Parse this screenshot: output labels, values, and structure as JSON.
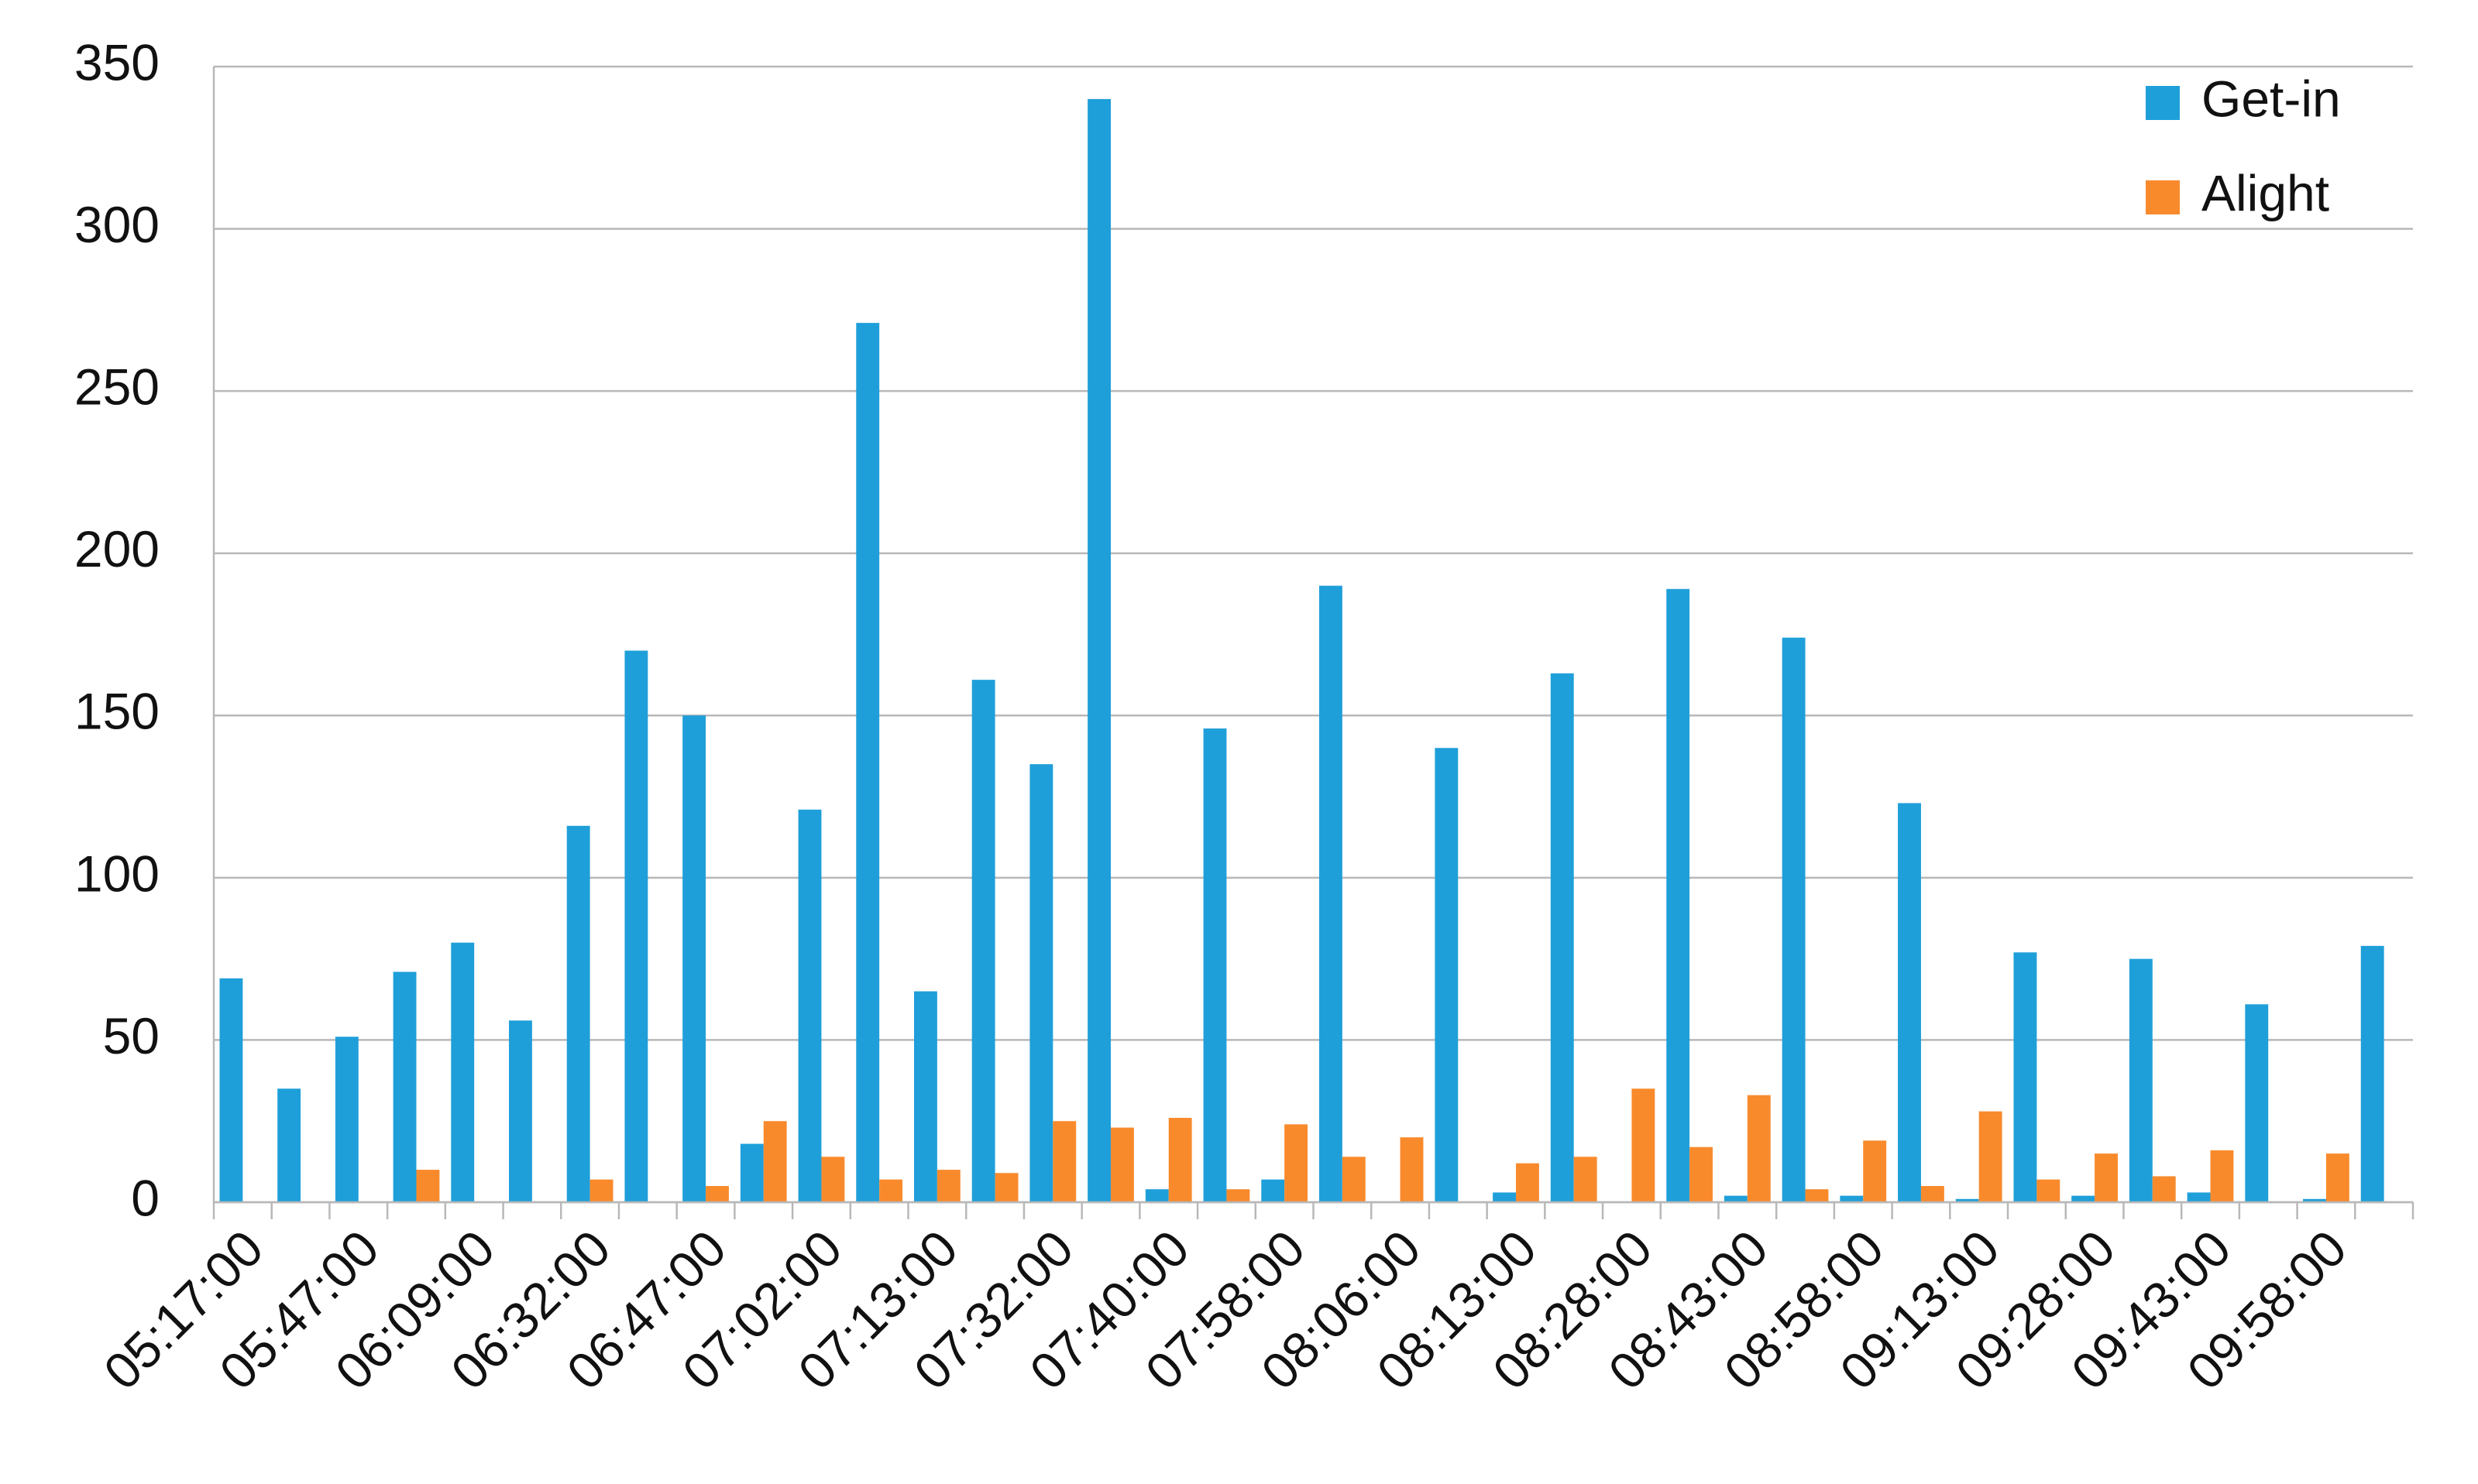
{
  "chart_data": {
    "type": "bar",
    "categories": [
      "05:17:00",
      null,
      "05:47:00",
      null,
      "06:09:00",
      null,
      "06:32:00",
      null,
      "06:47:00",
      null,
      "07:02:00",
      null,
      "07:13:00",
      null,
      "07:32:00",
      null,
      "07:40:00",
      null,
      "07:58:00",
      null,
      "08:06:00",
      null,
      "08:13:00",
      null,
      "08:28:00",
      null,
      "08:43:00",
      null,
      "08:58:00",
      null,
      "09:13:00",
      null,
      "09:28:00",
      null,
      "09:43:00",
      null,
      "09:58:00",
      null
    ],
    "series": [
      {
        "name": "Get-in",
        "color": "#1f9fd9",
        "values": [
          69,
          35,
          51,
          71,
          80,
          56,
          116,
          170,
          150,
          18,
          121,
          271,
          65,
          161,
          135,
          340,
          4,
          146,
          7,
          190,
          0,
          140,
          3,
          163,
          0,
          189,
          2,
          174,
          2,
          123,
          1,
          77,
          2,
          75,
          3,
          61,
          1,
          79
        ]
      },
      {
        "name": "Alight",
        "color": "#f98a2c",
        "values": [
          0,
          0,
          0,
          10,
          0,
          0,
          7,
          0,
          5,
          25,
          14,
          7,
          10,
          9,
          25,
          23,
          26,
          4,
          24,
          14,
          20,
          0,
          12,
          14,
          35,
          17,
          33,
          4,
          19,
          5,
          28,
          7,
          15,
          8,
          16,
          0,
          15,
          0
        ]
      }
    ],
    "ylim": [
      0,
      350
    ],
    "yticks": [
      0,
      50,
      100,
      150,
      200,
      250,
      300,
      350
    ],
    "grid": true,
    "legend": "upper right"
  }
}
